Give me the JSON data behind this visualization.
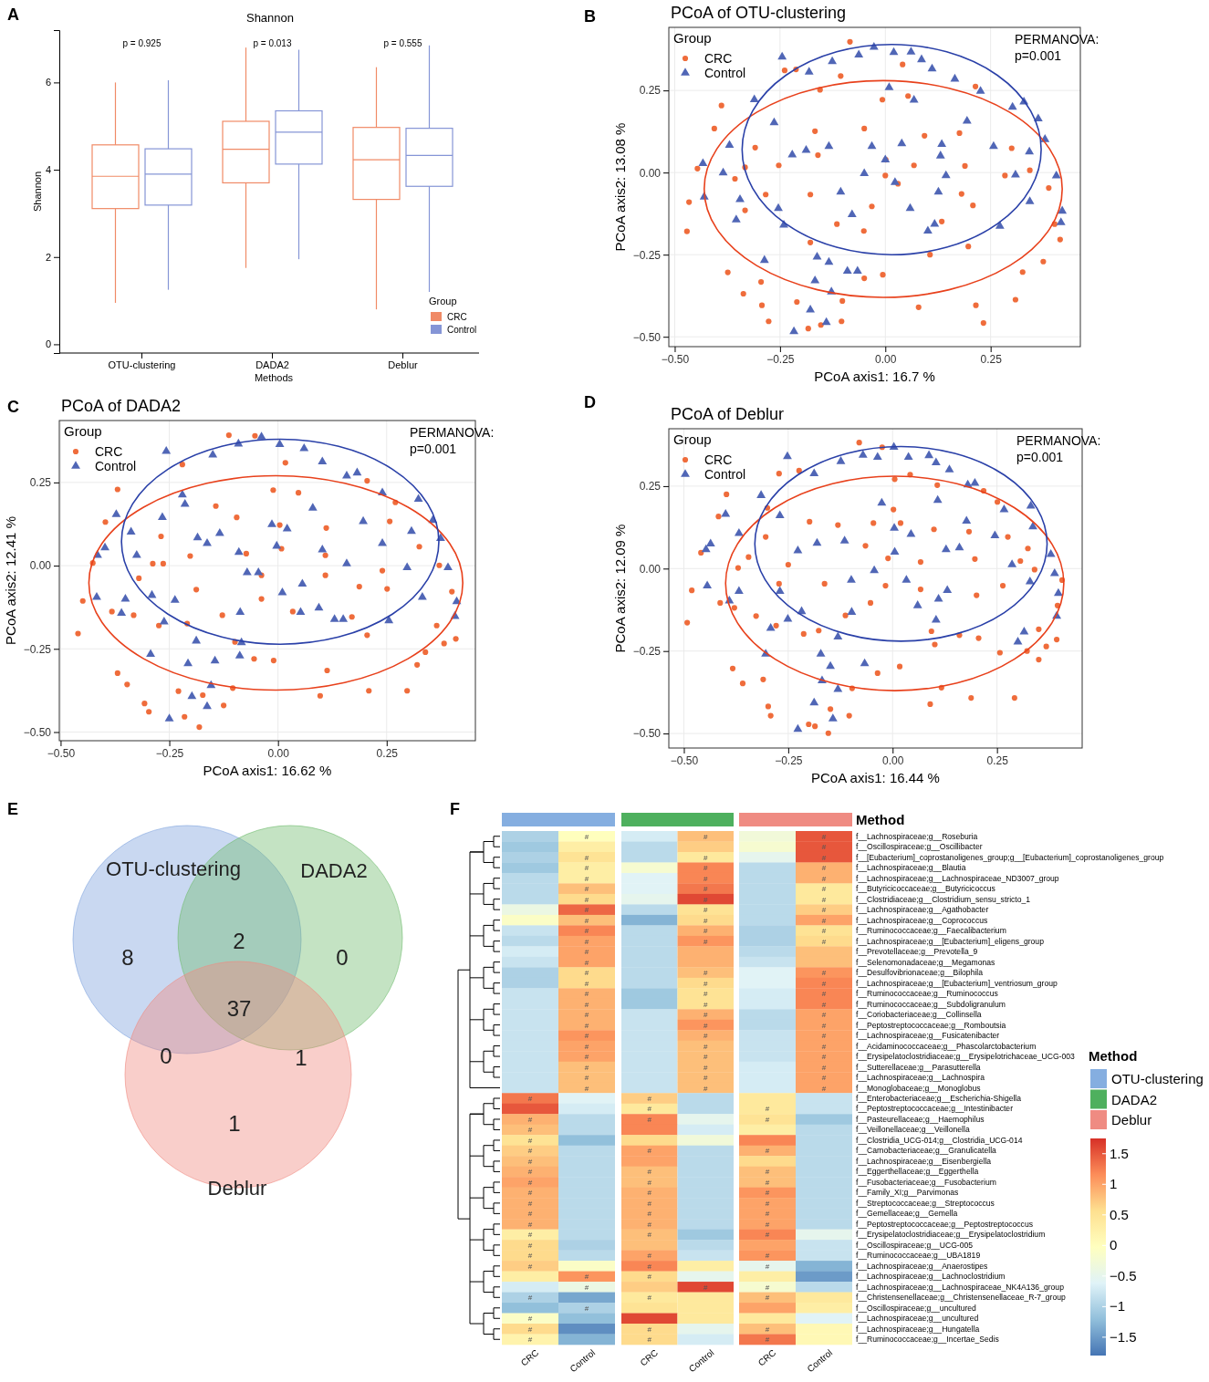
{
  "chart_data": [
    {
      "type": "box",
      "title": "Shannon",
      "xlabel": "Methods",
      "ylabel": "Shannon",
      "legend_title": "Group",
      "legend": "bottom right",
      "categories": [
        "OTU-clustering",
        "DADA2",
        "Deblur"
      ],
      "ylim": [
        -0.2,
        7.2
      ],
      "yticks": [
        0,
        2,
        4,
        6
      ],
      "annotations": [
        "A",
        "p = 0.925",
        "p = 0.013",
        "p = 0.555"
      ],
      "series": [
        {
          "name": "CRC",
          "color": "#f08a66",
          "boxes": [
            {
              "low": 0.95,
              "q1": 3.11,
              "median": 3.85,
              "q3": 4.57,
              "high": 6.0
            },
            {
              "low": 1.75,
              "q1": 3.7,
              "median": 4.47,
              "q3": 5.11,
              "high": 6.8
            },
            {
              "low": 0.8,
              "q1": 3.32,
              "median": 4.23,
              "q3": 4.97,
              "high": 6.35
            }
          ]
        },
        {
          "name": "Control",
          "color": "#8595d6",
          "boxes": [
            {
              "low": 1.25,
              "q1": 3.19,
              "median": 3.9,
              "q3": 4.48,
              "high": 6.05
            },
            {
              "low": 1.95,
              "q1": 4.13,
              "median": 4.86,
              "q3": 5.35,
              "high": 6.75
            },
            {
              "low": 1.2,
              "q1": 3.62,
              "median": 4.33,
              "q3": 4.95,
              "high": 6.85
            }
          ]
        }
      ]
    },
    {
      "type": "scatter",
      "title": "PCoA of OTU-clustering",
      "xlabel": "PCoA axis1:  16.7 %",
      "ylabel": "PCoA axis2:  13.08 %",
      "legend_title": "Group",
      "legend": "top left",
      "grid": true,
      "xlim": [
        -0.514,
        0.463
      ],
      "ylim": [
        -0.53,
        0.442
      ],
      "xticks": [
        {
          "value": -0.5,
          "label": "−0.50"
        },
        {
          "value": -0.25,
          "label": "−0.25"
        },
        {
          "value": 0,
          "label": "0.00"
        },
        {
          "value": 0.25,
          "label": "0.25"
        }
      ],
      "yticks": [
        {
          "value": -0.5,
          "label": "−0.50"
        },
        {
          "value": -0.25,
          "label": "−0.25"
        },
        {
          "value": 0,
          "label": "0.00"
        },
        {
          "value": 0.25,
          "label": "0.25"
        }
      ],
      "annotations": [
        "B",
        "PERMANOVA:",
        "p=0.001"
      ],
      "series": [
        {
          "name": "CRC",
          "color": "#ef6c3b",
          "marker": "circle",
          "x": [
            -0.084,
            -0.239,
            -0.212,
            -0.389,
            -0.406,
            -0.446,
            -0.466,
            -0.471,
            -0.374,
            -0.337,
            -0.295,
            -0.293,
            -0.277,
            -0.21,
            -0.183,
            -0.153,
            -0.104,
            -0.102,
            -0.05,
            -0.006,
            0.079,
            0.106,
            0.215,
            0.233,
            0.309,
            0.326,
            0.375,
            0.415,
            0.402,
            0.388,
            0.343,
            0.3,
            0.284,
            0.214,
            0.176,
            0.189,
            0.181,
            0.208,
            0.197,
            0.134,
            0.093,
            0.054,
            0.041,
            -0.007,
            0.001,
            0,
            -0.05,
            -0.106,
            -0.155,
            -0.167,
            -0.16,
            -0.178,
            -0.253,
            -0.309,
            -0.333,
            -0.357,
            -0.333,
            -0.284,
            -0.178,
            -0.115,
            -0.051,
            -0.032,
            0.03,
            0.068
          ],
          "values": [
            0.398,
            0.311,
            0.314,
            0.204,
            0.134,
            0.012,
            -0.09,
            -0.179,
            -0.304,
            -0.369,
            -0.333,
            -0.404,
            -0.453,
            -0.394,
            -0.475,
            -0.464,
            -0.453,
            -0.391,
            -0.322,
            -0.311,
            -0.41,
            -0.25,
            -0.404,
            -0.458,
            -0.387,
            -0.303,
            -0.271,
            -0.204,
            -0.157,
            -0.047,
            0.007,
            0.074,
            -0.009,
            0.262,
            0.12,
            0.02,
            -0.065,
            -0.1,
            -0.225,
            -0.149,
            0.112,
            0.233,
            0.329,
            0.222,
            0.039,
            -0.009,
            0.134,
            0.294,
            0.252,
            0.126,
            0.053,
            -0.067,
            0.022,
            0.076,
            0.016,
            -0.019,
            -0.115,
            -0.067,
            -0.213,
            -0.157,
            -0.178,
            -0.103,
            -0.034,
            0.022
          ]
        },
        {
          "name": "Control",
          "color": "#5066b6",
          "marker": "triangle",
          "x": [
            -0.245,
            -0.181,
            -0.126,
            -0.063,
            -0.027,
            0.02,
            0.061,
            0.086,
            0.111,
            0.165,
            0.226,
            0.302,
            0.329,
            0.363,
            0.379,
            0.342,
            0.406,
            0.42,
            0.417,
            0.343,
            0.272,
            0.309,
            0.257,
            0.194,
            0.134,
            0.131,
            0.144,
            0.126,
            0.117,
            0.101,
            0.059,
            0.023,
            0,
            0.039,
            0.068,
            0.009,
            -0.032,
            -0.05,
            -0.079,
            -0.106,
            -0.134,
            -0.188,
            -0.221,
            -0.264,
            -0.311,
            -0.37,
            -0.385,
            -0.433,
            -0.43,
            -0.345,
            -0.354,
            -0.254,
            -0.241,
            -0.287,
            -0.162,
            -0.134,
            -0.167,
            -0.128,
            -0.178,
            -0.217,
            -0.14,
            -0.09,
            -0.066
          ],
          "values": [
            0.352,
            0.306,
            0.338,
            0.358,
            0.382,
            0.366,
            0.367,
            0.344,
            0.316,
            0.285,
            0.248,
            0.199,
            0.215,
            0.164,
            0.101,
            0.063,
            -0.01,
            -0.117,
            -0.152,
            -0.088,
            -0.163,
            -0.007,
            0.08,
            0.157,
            0.086,
            0.051,
            -0.009,
            -0.059,
            -0.157,
            -0.178,
            -0.109,
            -0.03,
            0.039,
            0.088,
            0.221,
            0.259,
            0.08,
            -0.003,
            -0.128,
            -0.059,
            0.08,
            0.068,
            0.054,
            0.152,
            0.222,
            0.083,
            -0.001,
            0.028,
            -0.074,
            -0.082,
            -0.144,
            -0.109,
            -0.16,
            -0.267,
            -0.257,
            -0.273,
            -0.329,
            -0.363,
            -0.418,
            -0.484,
            -0.456,
            -0.3,
            -0.3
          ]
        }
      ]
    },
    {
      "type": "scatter",
      "title": "PCoA of DADA2",
      "xlabel": "PCoA axis1:  16.62 %",
      "ylabel": "PCoA axis2:  12.41 %",
      "legend_title": "Group",
      "legend": "top left",
      "grid": true,
      "xlim": [
        -0.503,
        0.454
      ],
      "ylim": [
        -0.526,
        0.436
      ],
      "xticks": [
        {
          "value": -0.5,
          "label": "−0.50"
        },
        {
          "value": -0.25,
          "label": "−0.25"
        },
        {
          "value": 0,
          "label": "0.00"
        },
        {
          "value": 0.25,
          "label": "0.25"
        }
      ],
      "yticks": [
        {
          "value": -0.5,
          "label": "−0.50"
        },
        {
          "value": -0.25,
          "label": "−0.25"
        },
        {
          "value": 0,
          "label": "0.00"
        },
        {
          "value": 0.25,
          "label": "0.25"
        }
      ],
      "annotations": [
        "C",
        "PERMANOVA:",
        "p=0.001"
      ],
      "series": [
        {
          "name": "CRC",
          "color": "#ef6c3b",
          "marker": "circle",
          "x": [
            -0.113,
            -0.053,
            0.017,
            -0.22,
            -0.369,
            -0.397,
            -0.426,
            -0.449,
            -0.46,
            -0.382,
            -0.369,
            -0.347,
            -0.307,
            -0.297,
            -0.229,
            -0.215,
            -0.181,
            -0.173,
            -0.125,
            -0.104,
            -0.055,
            -0.01,
            0.097,
            0.113,
            0.209,
            0.297,
            0.32,
            0.339,
            0.409,
            0.382,
            0.365,
            0.4,
            0.371,
            0.325,
            0.257,
            0.27,
            0.205,
            0.24,
            0.251,
            0.187,
            0.205,
            0.17,
            0.109,
            0.109,
            0.111,
            0.047,
            -0.011,
            0.004,
            0.008,
            -0.038,
            -0.073,
            -0.095,
            -0.143,
            -0.202,
            -0.264,
            -0.288,
            -0.269,
            -0.32,
            -0.332,
            -0.274,
            -0.209,
            -0.188,
            -0.128,
            -0.099,
            -0.038,
            0.034
          ],
          "values": [
            0.392,
            0.39,
            0.309,
            0.304,
            0.229,
            0.131,
            0.008,
            -0.106,
            -0.204,
            -0.138,
            -0.323,
            -0.357,
            -0.414,
            -0.439,
            -0.377,
            -0.454,
            -0.485,
            -0.389,
            -0.42,
            -0.368,
            -0.28,
            -0.285,
            -0.391,
            -0.315,
            -0.376,
            -0.376,
            -0.298,
            -0.26,
            -0.22,
            -0.234,
            -0.18,
            -0.078,
            0.001,
            0.057,
            0.133,
            0.19,
            0.255,
            -0.015,
            -0.07,
            -0.063,
            -0.209,
            -0.154,
            -0.029,
            0.031,
            0.113,
            0.219,
            0.227,
            0.122,
            0.051,
            -0.029,
            0.036,
            0.145,
            0.179,
            0.029,
            0.006,
            0.006,
            0.088,
            -0.038,
            -0.149,
            -0.18,
            -0.174,
            -0.072,
            -0.149,
            -0.229,
            -0.1,
            -0.138
          ]
        },
        {
          "name": "Control",
          "color": "#5066b6",
          "marker": "triangle",
          "x": [
            -0.257,
            -0.15,
            -0.091,
            -0.038,
            0.004,
            0.06,
            0.102,
            0.158,
            0.182,
            0.24,
            0.323,
            0.356,
            0.374,
            0.307,
            0.24,
            0.196,
            0.158,
            0.391,
            0.411,
            0.407,
            0.332,
            0.255,
            0.297,
            0.13,
            0.15,
            0.094,
            0.052,
            0.056,
            0.01,
            -0.003,
            0.021,
            -0.014,
            0.08,
            0.102,
            -0.045,
            -0.071,
            -0.087,
            -0.09,
            -0.134,
            -0.163,
            -0.185,
            -0.22,
            -0.214,
            -0.266,
            -0.325,
            -0.338,
            -0.372,
            -0.398,
            -0.415,
            -0.417,
            -0.351,
            -0.36,
            -0.29,
            -0.237,
            -0.262,
            -0.293,
            -0.188,
            -0.207,
            -0.198,
            -0.163,
            -0.154,
            -0.25,
            -0.145,
            -0.088,
            -0.084
          ],
          "values": [
            0.344,
            0.333,
            0.366,
            0.387,
            0.364,
            0.352,
            0.312,
            0.27,
            0.279,
            0.219,
            0.2,
            0.136,
            0.082,
            0.103,
            0.067,
            0.133,
            0.006,
            -0.006,
            -0.108,
            -0.152,
            -0.095,
            -0.165,
            -0.006,
            -0.161,
            -0.161,
            -0.127,
            -0.14,
            -0.055,
            -0.081,
            0.059,
            0.111,
            0.124,
            0.173,
            0.048,
            -0.021,
            -0.021,
            -0.14,
            0.04,
            0.097,
            0.067,
            0.084,
            0.213,
            0.185,
            0.145,
            0.031,
            0.101,
            0.154,
            0.054,
            0.031,
            -0.095,
            -0.1,
            -0.143,
            -0.089,
            -0.104,
            -0.169,
            -0.266,
            -0.226,
            -0.294,
            -0.393,
            -0.423,
            -0.36,
            -0.46,
            -0.286,
            -0.271,
            -0.231
          ]
        }
      ]
    },
    {
      "type": "scatter",
      "title": "PCoA of Deblur",
      "xlabel": "PCoA axis1:  16.44 %",
      "ylabel": "PCoA axis2:  12.09 %",
      "legend_title": "Group",
      "legend": "top left",
      "grid": true,
      "xlim": [
        -0.536,
        0.454
      ],
      "ylim": [
        -0.544,
        0.424
      ],
      "xticks": [
        {
          "value": -0.5,
          "label": "−0.50"
        },
        {
          "value": -0.25,
          "label": "−0.25"
        },
        {
          "value": 0,
          "label": "0.00"
        },
        {
          "value": 0.25,
          "label": "0.25"
        }
      ],
      "yticks": [
        {
          "value": -0.5,
          "label": "−0.50"
        },
        {
          "value": -0.25,
          "label": "−0.25"
        },
        {
          "value": 0,
          "label": "0.00"
        },
        {
          "value": 0.25,
          "label": "0.25"
        }
      ],
      "annotations": [
        "D",
        "PERMANOVA:",
        "p=0.001"
      ],
      "series": [
        {
          "name": "CRC",
          "color": "#ef6c3b",
          "marker": "circle",
          "x": [
            -0.08,
            -0.025,
            -0.224,
            -0.272,
            -0.398,
            -0.417,
            -0.459,
            -0.481,
            -0.492,
            -0.413,
            -0.379,
            -0.383,
            -0.359,
            -0.31,
            -0.298,
            -0.292,
            -0.201,
            -0.186,
            -0.154,
            -0.149,
            -0.104,
            -0.097,
            -0.036,
            0.017,
            0.09,
            0.117,
            0.188,
            0.292,
            0.257,
            0.322,
            0.35,
            0.368,
            0.393,
            0.35,
            0.395,
            0.406,
            0.34,
            0.306,
            0.276,
            0.324,
            0.251,
            0.218,
            0.183,
            0.197,
            0.201,
            0.264,
            0.206,
            0.16,
            0.093,
            0.101,
            0.067,
            0.067,
            0.099,
            0.107,
            0.042,
            0.005,
            0.002,
            0.019,
            -0.011,
            -0.065,
            -0.046,
            -0.131,
            -0.199,
            -0.163,
            -0.25,
            -0.272,
            -0.3,
            -0.304,
            -0.345,
            -0.37,
            -0.327,
            -0.279,
            -0.213,
            -0.177,
            -0.113,
            -0.053,
            -0.017
          ],
          "values": [
            0.382,
            0.368,
            0.297,
            0.288,
            0.225,
            0.158,
            0.048,
            -0.066,
            -0.164,
            -0.104,
            -0.119,
            -0.303,
            -0.348,
            -0.336,
            -0.418,
            -0.446,
            -0.472,
            -0.478,
            -0.499,
            -0.426,
            -0.446,
            -0.363,
            -0.317,
            -0.297,
            -0.411,
            -0.361,
            -0.392,
            -0.392,
            -0.255,
            -0.25,
            -0.276,
            -0.236,
            -0.215,
            -0.184,
            -0.112,
            -0.035,
            -0.003,
            0.023,
            0.096,
            0.061,
            0.202,
            0.236,
            0.112,
            0.029,
            -0.081,
            -0.052,
            -0.211,
            -0.202,
            -0.19,
            -0.23,
            -0.063,
            0.02,
            0.119,
            0.253,
            0.285,
            0.271,
            0.179,
            0.138,
            0.031,
            0.069,
            0.138,
            0.132,
            0.142,
            -0.046,
            0.012,
            -0.046,
            0.184,
            0.096,
            0.035,
            0.002,
            -0.144,
            -0.173,
            -0.198,
            -0.188,
            -0.142,
            -0.104,
            -0.052
          ]
        },
        {
          "name": "Control",
          "color": "#5066b6",
          "marker": "triangle",
          "x": [
            -0.252,
            -0.188,
            -0.124,
            -0.071,
            -0.036,
            0.003,
            0.038,
            0.087,
            0.104,
            0.136,
            0.18,
            0.197,
            0.267,
            0.331,
            0.336,
            0.379,
            0.388,
            0.397,
            0.393,
            0.315,
            0.3,
            0.329,
            0.286,
            0.245,
            0.177,
            0.16,
            0.128,
            0.131,
            0.11,
            0.104,
            0.06,
            0.033,
            0.005,
            0.044,
            0.108,
            0.004,
            -0.026,
            -0.044,
            -0.099,
            -0.098,
            -0.115,
            -0.181,
            -0.227,
            -0.27,
            -0.315,
            -0.368,
            -0.4,
            -0.436,
            -0.447,
            -0.444,
            -0.391,
            -0.368,
            -0.27,
            -0.251,
            -0.218,
            -0.292,
            -0.304,
            -0.172,
            -0.149,
            -0.169,
            -0.188,
            -0.131,
            -0.143,
            -0.227,
            -0.067,
            -0.131
          ],
          "values": [
            0.34,
            0.288,
            0.325,
            0.344,
            0.338,
            0.368,
            0.338,
            0.343,
            0.321,
            0.3,
            0.254,
            0.259,
            0.179,
            0.19,
            0.127,
            0.043,
            -0.015,
            -0.075,
            -0.144,
            -0.192,
            -0.222,
            -0.04,
            0.012,
            0.1,
            0.144,
            0.063,
            0.058,
            -0.066,
            -0.092,
            -0.156,
            -0.112,
            -0.035,
            0.05,
            0.104,
            0.207,
            0.123,
            0.199,
            -0.006,
            -0.035,
            -0.132,
            0.084,
            0.077,
            0.054,
            0.161,
            0.222,
            0.107,
            0.165,
            0.075,
            0.058,
            -0.052,
            -0.098,
            -0.069,
            -0.069,
            -0.153,
            -0.13,
            -0.181,
            -0.259,
            -0.259,
            -0.296,
            -0.34,
            -0.407,
            -0.366,
            -0.455,
            -0.487,
            -0.288,
            -0.207
          ]
        }
      ]
    },
    {
      "type": "other",
      "annotations": [
        "E",
        "OTU-clustering",
        "DADA2",
        "Deblur",
        "8",
        "0",
        "1",
        "2",
        "0",
        "1",
        "37"
      ]
    },
    {
      "type": "heatmap",
      "categories": [
        "CRC",
        "Control",
        "CRC",
        "Control",
        "CRC",
        "Control"
      ],
      "clim": [
        -1.8,
        1.75
      ],
      "cticks": [
        {
          "value": 1.5,
          "label": "1.5"
        },
        1,
        {
          "value": 0.5,
          "label": "0.5"
        },
        0,
        {
          "value": -0.5,
          "label": "−0.5"
        },
        {
          "value": -1,
          "label": "−1"
        },
        {
          "value": -1.5,
          "label": "−1.5"
        }
      ],
      "colors": [
        "#4575b4",
        "#91bfdb",
        "#e0f3f8",
        "#ffffbf",
        "#fee090",
        "#fc8d59",
        "#d73027"
      ],
      "annotations": [
        "F"
      ],
      "y_categories": [
        "f__Lachnospiraceae;g__Roseburia",
        "f__Oscillospiraceae;g__Oscillibacter",
        "f__[Eubacterium]_coprostanoligenes_group;g__[Eubacterium]_coprostanoligenes_group",
        "f__Lachnospiraceae;g__Blautia",
        "f__Lachnospiraceae;g__Lachnospiraceae_ND3007_group",
        "f__Butyricicoccaceae;g__Butyricicoccus",
        "f__Clostridiaceae;g__Clostridium_sensu_stricto_1",
        "f__Lachnospiraceae;g__Agathobacter",
        "f__Lachnospiraceae;g__Coprococcus",
        "f__Ruminococcaceae;g__Faecalibacterium",
        "f__Lachnospiraceae;g__[Eubacterium]_eligens_group",
        "f__Prevotellaceae;g__Prevotella_9",
        "f__Selenomonadaceae;g__Megamonas",
        "f__Desulfovibrionaceae;g__Bilophila",
        "f__Lachnospiraceae;g__[Eubacterium]_ventriosum_group",
        "f__Ruminococcaceae;g__Ruminococcus",
        "f__Ruminococcaceae;g__Subdoligranulum",
        "f__Coriobacteriaceae;g__Collinsella",
        "f__Peptostreptococcaceae;g__Romboutsia",
        "f__Lachnospiraceae;g__Fusicatenibacter",
        "f__Acidaminococcaceae;g__Phascolarctobacterium",
        "f__Erysipelatoclostridiaceae;g__Erysipelotrichaceae_UCG-003",
        "f__Sutterellaceae;g__Parasutterella",
        "f__Lachnospiraceae;g__Lachnospira",
        "f__Monoglobaceae;g__Monoglobus",
        "f__Enterobacteriaceae;g__Escherichia-Shigella",
        "f__Peptostreptococcaceae;g__Intestinibacter",
        "f__Pasteurellaceae;g__Haemophilus",
        "f__Veillonellaceae;g__Veillonella",
        "f__Clostridia_UCG-014;g__Clostridia_UCG-014",
        "f__Carnobacteriaceae;g__Granulicatella",
        "f__Lachnospiraceae;g__Eisenbergiella",
        "f__Eggerthellaceae;g__Eggerthella",
        "f__Fusobacteriaceae;g__Fusobacterium",
        "f__Family_XI;g__Parvimonas",
        "f__Streptococcaceae;g__Streptococcus",
        "f__Gemellaceae;g__Gemella",
        "f__Peptostreptococcaceae;g__Peptostreptococcus",
        "f__Erysipelatoclostridiaceae;g__Erysipelatoclostridium",
        "f__Oscillospiraceae;g__UCG-005",
        "f__Ruminococcaceae;g__UBA1819",
        "f__Lachnospiraceae;g__Anaerostipes",
        "f__Lachnospiraceae;g__Lachnoclostridium",
        "f__Lachnospiraceae;g__Lachnospiraceae_NK4A136_group",
        "f__Christensenellaceae;g__Christensenellaceae_R-7_group",
        "f__Oscillospiraceae;g__uncultured",
        "f__Lachnospiraceae;g__uncultured",
        "f__Lachnospiraceae;g__Hungatella",
        "f__Ruminococcaceae;g__Incertae_Sedis"
      ],
      "cells": [
        [
          -1.0,
          0.0,
          -0.7,
          0.8,
          -0.3,
          1.5
        ],
        [
          -1.1,
          0.3,
          -0.9,
          0.7,
          -0.2,
          1.5
        ],
        [
          -1.0,
          0.5,
          -0.9,
          0.4,
          -0.5,
          1.5
        ],
        [
          -1.1,
          0.3,
          -0.2,
          1.2,
          -0.9,
          0.9
        ],
        [
          -0.9,
          0.3,
          -0.6,
          1.2,
          -0.9,
          0.9
        ],
        [
          -0.9,
          0.8,
          -0.6,
          1.3,
          -0.9,
          0.4
        ],
        [
          -0.9,
          0.6,
          -0.5,
          1.6,
          -0.9,
          0.4
        ],
        [
          -0.4,
          1.4,
          -0.9,
          0.5,
          -0.9,
          0.7
        ],
        [
          -0.1,
          0.8,
          -1.3,
          0.6,
          -0.9,
          1.0
        ],
        [
          -0.8,
          1.2,
          -0.9,
          0.9,
          -1.0,
          0.5
        ],
        [
          -0.9,
          1.0,
          -0.9,
          1.1,
          -1.0,
          0.6
        ],
        [
          -0.7,
          1.0,
          -0.9,
          0.9,
          -0.9,
          0.8
        ],
        [
          -0.8,
          1.0,
          -0.9,
          0.9,
          -0.8,
          0.8
        ],
        [
          -1.0,
          0.6,
          -0.9,
          0.8,
          -0.6,
          1.1
        ],
        [
          -1.0,
          0.6,
          -0.9,
          0.6,
          -0.6,
          1.2
        ],
        [
          -0.8,
          0.9,
          -1.1,
          0.5,
          -0.7,
          1.2
        ],
        [
          -0.8,
          0.9,
          -1.1,
          0.5,
          -0.7,
          1.2
        ],
        [
          -0.8,
          0.9,
          -0.8,
          0.9,
          -0.9,
          1.0
        ],
        [
          -0.8,
          0.9,
          -0.8,
          1.1,
          -0.9,
          1.0
        ],
        [
          -0.8,
          1.1,
          -0.8,
          0.9,
          -0.8,
          1.0
        ],
        [
          -0.8,
          1.0,
          -0.8,
          0.8,
          -0.8,
          1.0
        ],
        [
          -0.8,
          1.0,
          -0.8,
          0.8,
          -0.8,
          1.0
        ],
        [
          -0.8,
          0.8,
          -0.8,
          0.8,
          -0.7,
          1.0
        ],
        [
          -0.8,
          0.8,
          -0.8,
          0.8,
          -0.7,
          1.0
        ],
        [
          -0.8,
          0.8,
          -0.8,
          0.8,
          -0.7,
          1.0
        ],
        [
          1.3,
          -0.6,
          0.7,
          -0.9,
          0.4,
          -0.8
        ],
        [
          1.5,
          -0.7,
          0.4,
          -0.9,
          0.4,
          -0.8
        ],
        [
          0.9,
          -0.9,
          1.2,
          -0.5,
          0.5,
          -1.1
        ],
        [
          0.8,
          -0.9,
          1.2,
          -0.7,
          0.3,
          -0.9
        ],
        [
          0.5,
          -1.2,
          0.6,
          -0.3,
          1.2,
          -0.9
        ],
        [
          0.7,
          -0.9,
          1.0,
          -0.9,
          0.9,
          -0.9
        ],
        [
          0.8,
          -0.9,
          1.0,
          -0.9,
          0.6,
          -0.9
        ],
        [
          0.9,
          -0.9,
          0.8,
          -0.9,
          0.8,
          -0.9
        ],
        [
          1.0,
          -0.9,
          0.8,
          -0.9,
          0.8,
          -0.9
        ],
        [
          0.9,
          -0.9,
          0.9,
          -0.9,
          1.1,
          -0.9
        ],
        [
          0.9,
          -0.9,
          0.9,
          -0.9,
          1.0,
          -0.9
        ],
        [
          0.9,
          -0.9,
          0.9,
          -0.9,
          1.0,
          -0.9
        ],
        [
          0.9,
          -0.9,
          0.9,
          -0.9,
          1.0,
          -0.9
        ],
        [
          0.3,
          -0.9,
          0.8,
          -1.1,
          1.2,
          -0.5
        ],
        [
          0.6,
          -1.0,
          0.8,
          -0.9,
          1.0,
          -0.8
        ],
        [
          0.6,
          -0.9,
          1.0,
          -0.8,
          1.1,
          -0.8
        ],
        [
          0.7,
          -0.1,
          1.2,
          0.3,
          -0.5,
          -1.3
        ],
        [
          0.3,
          1.1,
          0.6,
          -0.5,
          0.3,
          -1.5
        ],
        [
          -0.7,
          -0.4,
          0.7,
          1.6,
          -0.2,
          -0.9
        ],
        [
          -1.0,
          -1.4,
          0.4,
          0.4,
          0.8,
          0.4
        ],
        [
          -1.2,
          -1.0,
          0.5,
          0.4,
          1.0,
          0.3
        ],
        [
          -0.1,
          -1.2,
          1.6,
          0.4,
          0.4,
          -0.6
        ],
        [
          0.6,
          -1.6,
          0.6,
          -0.5,
          0.8,
          0.1
        ],
        [
          0.2,
          -1.3,
          0.6,
          -0.7,
          1.3,
          0.1
        ]
      ],
      "cell_labels": [
        [
          null,
          "#",
          null,
          "#",
          null,
          "#"
        ],
        [
          null,
          null,
          null,
          null,
          null,
          "#"
        ],
        [
          null,
          "#",
          null,
          "#",
          null,
          "#"
        ],
        [
          null,
          "#",
          null,
          "#",
          null,
          "#"
        ],
        [
          null,
          "#",
          null,
          "#",
          null,
          "#"
        ],
        [
          null,
          "#",
          null,
          "#",
          null,
          "#"
        ],
        [
          null,
          "#",
          null,
          "#",
          null,
          "#"
        ],
        [
          null,
          "#",
          null,
          "#",
          null,
          "#"
        ],
        [
          null,
          "#",
          null,
          "#",
          null,
          "#"
        ],
        [
          null,
          "#",
          null,
          "#",
          null,
          "#"
        ],
        [
          null,
          "#",
          null,
          "#",
          null,
          "#"
        ],
        [
          null,
          "#",
          null,
          null,
          null,
          null
        ],
        [
          null,
          "#",
          null,
          null,
          null,
          null
        ],
        [
          null,
          "#",
          null,
          "#",
          null,
          "#"
        ],
        [
          null,
          "#",
          null,
          "#",
          null,
          "#"
        ],
        [
          null,
          "#",
          null,
          "#",
          null,
          "#"
        ],
        [
          null,
          "#",
          null,
          "#",
          null,
          "#"
        ],
        [
          null,
          "#",
          null,
          "#",
          null,
          "#"
        ],
        [
          null,
          "#",
          null,
          "#",
          null,
          "#"
        ],
        [
          null,
          "#",
          null,
          "#",
          null,
          "#"
        ],
        [
          null,
          "#",
          null,
          "#",
          null,
          "#"
        ],
        [
          null,
          "#",
          null,
          "#",
          null,
          "#"
        ],
        [
          null,
          "#",
          null,
          "#",
          null,
          "#"
        ],
        [
          null,
          "#",
          null,
          "#",
          null,
          "#"
        ],
        [
          null,
          "#",
          null,
          "#",
          null,
          "#"
        ],
        [
          "#",
          null,
          "#",
          null,
          null,
          null
        ],
        [
          null,
          null,
          "#",
          null,
          "#",
          null
        ],
        [
          "#",
          null,
          "#",
          null,
          "#",
          null
        ],
        [
          "#",
          null,
          null,
          null,
          null,
          null
        ],
        [
          "#",
          null,
          null,
          null,
          null,
          null
        ],
        [
          "#",
          null,
          "#",
          null,
          "#",
          null
        ],
        [
          "#",
          null,
          null,
          null,
          null,
          null
        ],
        [
          "#",
          null,
          "#",
          null,
          "#",
          null
        ],
        [
          "#",
          null,
          "#",
          null,
          "#",
          null
        ],
        [
          "#",
          null,
          "#",
          null,
          "#",
          null
        ],
        [
          "#",
          null,
          "#",
          null,
          "#",
          null
        ],
        [
          "#",
          null,
          "#",
          null,
          "#",
          null
        ],
        [
          "#",
          null,
          "#",
          null,
          "#",
          null
        ],
        [
          "#",
          null,
          "#",
          null,
          "#",
          null
        ],
        [
          "#",
          null,
          null,
          null,
          null,
          null
        ],
        [
          "#",
          null,
          "#",
          null,
          "#",
          null
        ],
        [
          "#",
          null,
          "#",
          null,
          "#",
          null
        ],
        [
          null,
          "#",
          "#",
          null,
          null,
          null
        ],
        [
          null,
          "#",
          null,
          "#",
          "#",
          null
        ],
        [
          "#",
          null,
          "#",
          null,
          "#",
          null
        ],
        [
          null,
          "#",
          null,
          null,
          null,
          null
        ],
        [
          "#",
          null,
          null,
          null,
          null,
          null
        ],
        [
          "#",
          null,
          "#",
          null,
          "#",
          null
        ],
        [
          "#",
          null,
          "#",
          null,
          "#",
          null
        ]
      ]
    },
    {
      "type": "other",
      "legend_title": "Method",
      "categories": [
        "OTU-clustering",
        "DADA2",
        "Deblur"
      ],
      "colors": [
        "#85aee0",
        "#4eb05e",
        "#ef8b82"
      ],
      "annotations": [
        "Method"
      ]
    }
  ]
}
